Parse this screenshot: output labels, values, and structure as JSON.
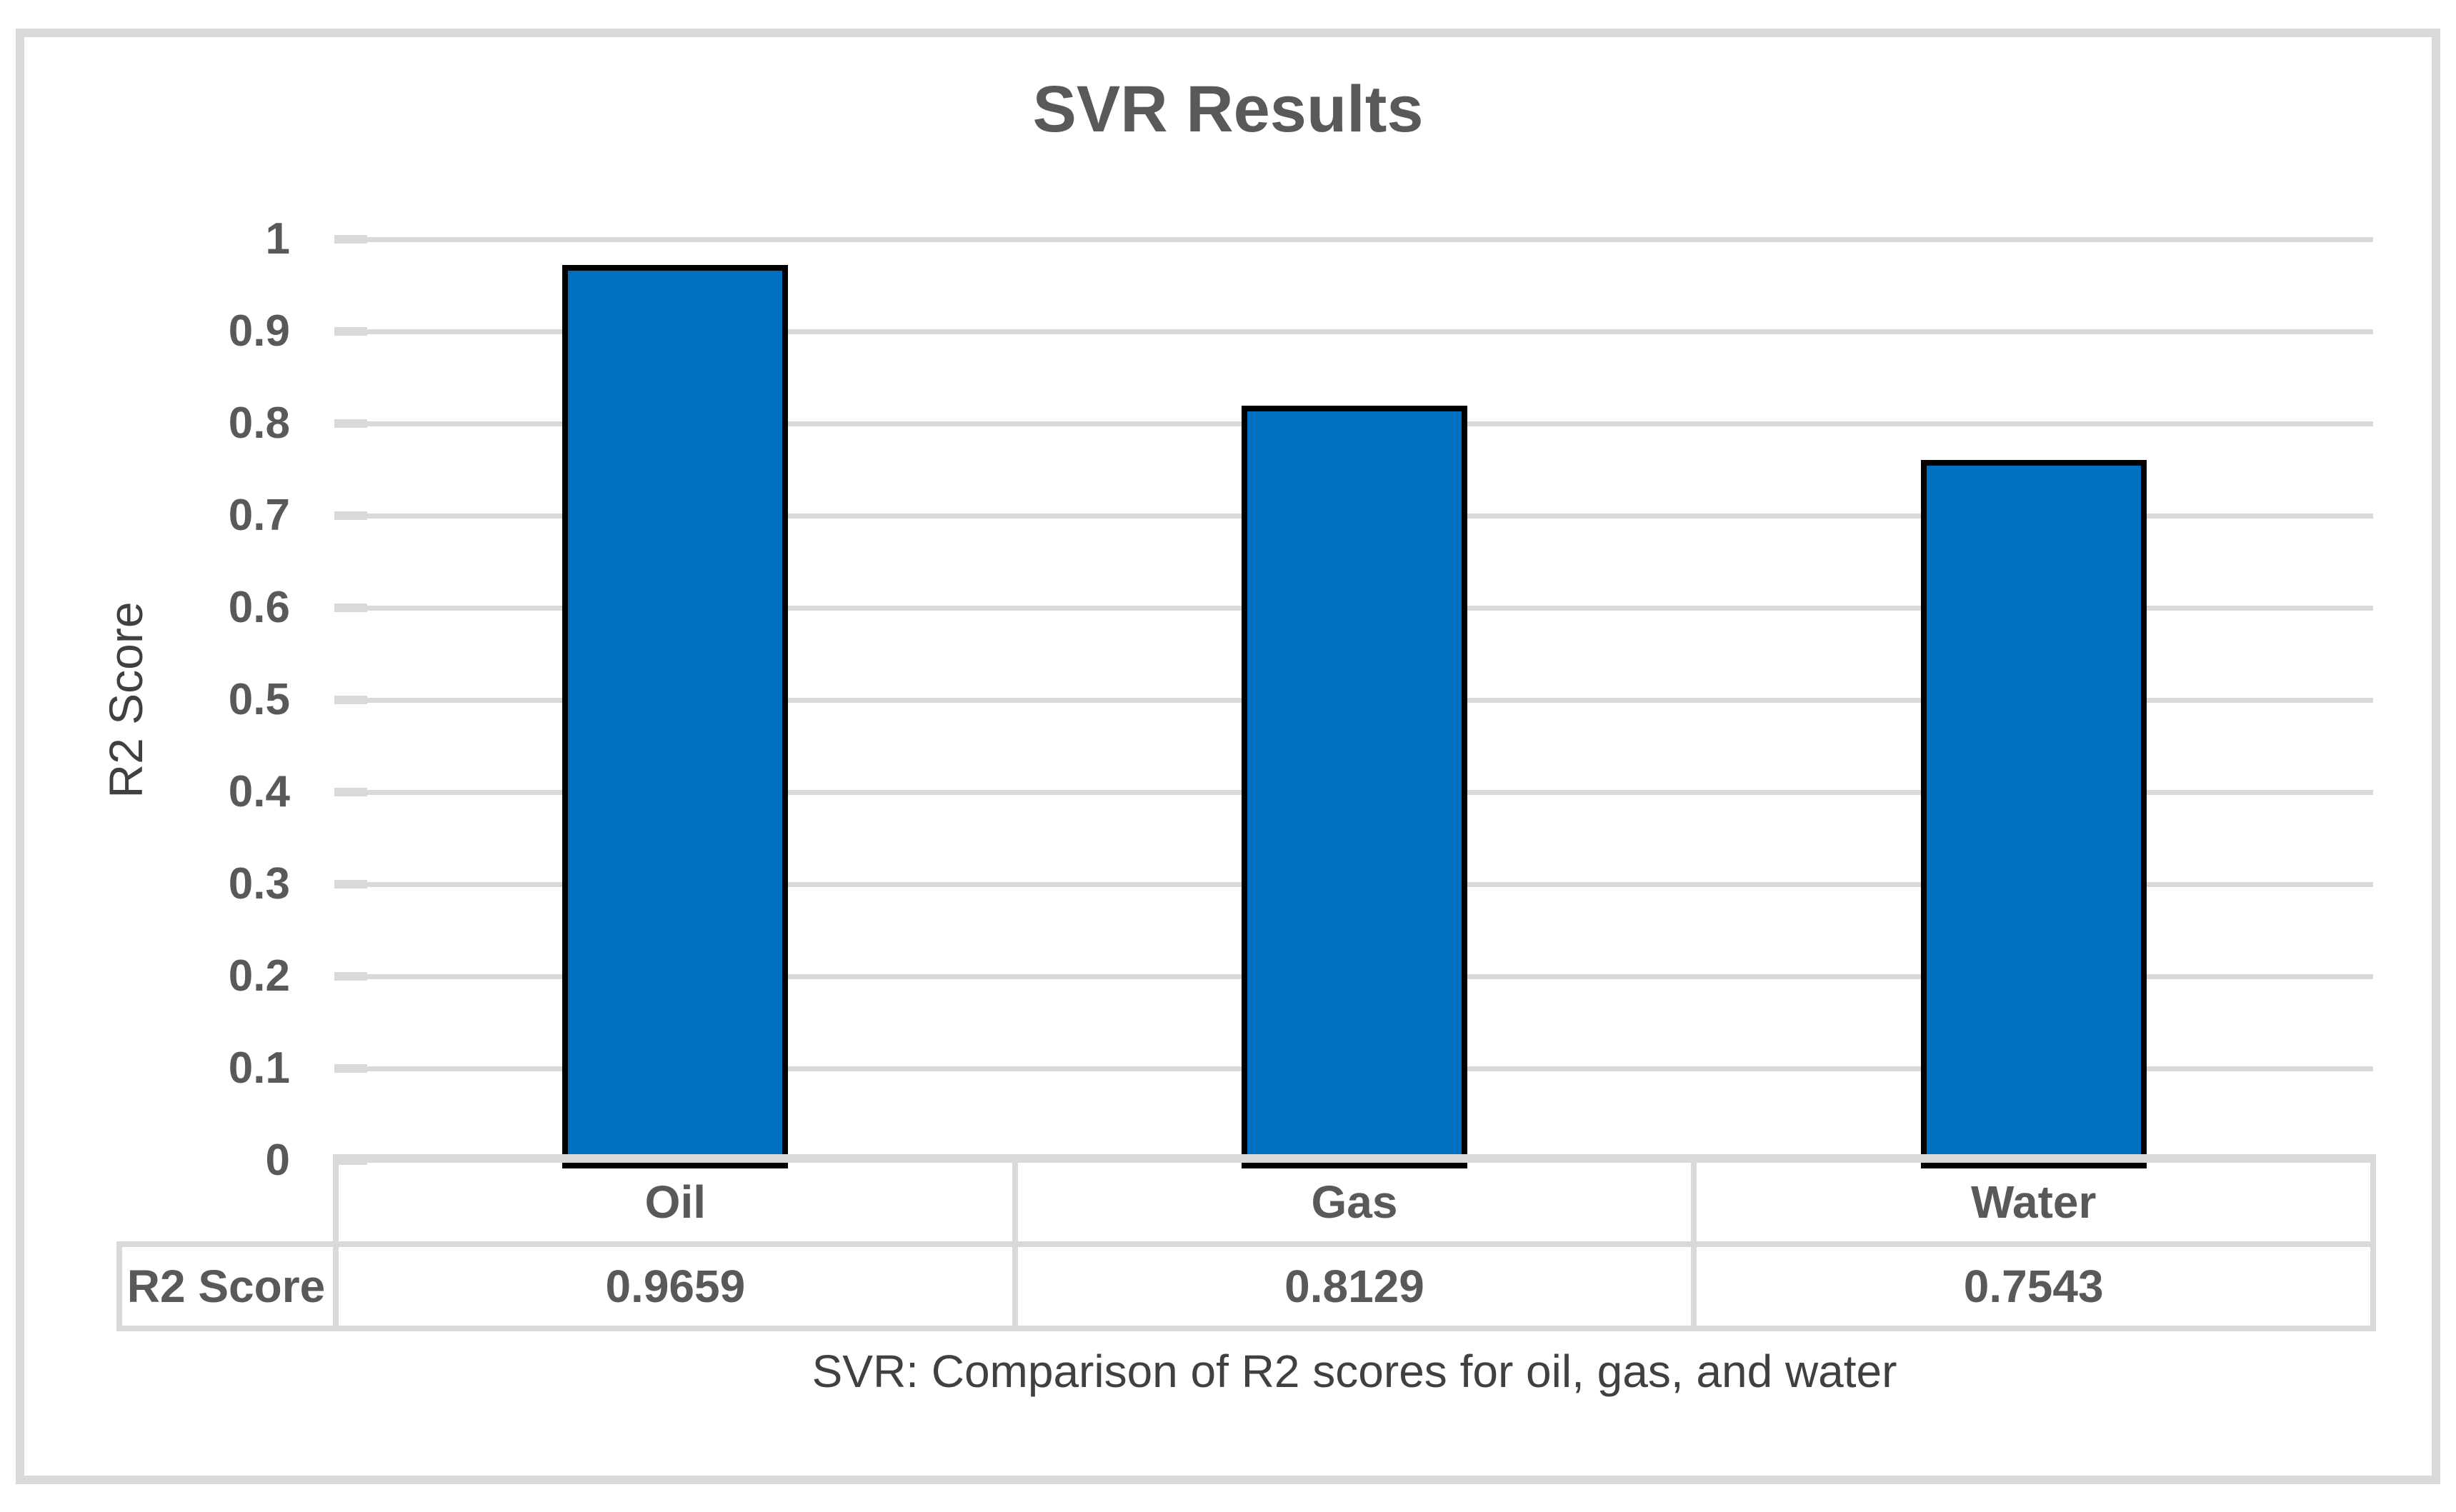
{
  "chart": {
    "title": "SVR Results",
    "y_axis_title": "R2 Score",
    "caption": "SVR: Comparison of R2 scores for oil, gas, and water",
    "table_row_header": "R2 Score"
  },
  "chart_data": {
    "type": "bar",
    "title": "SVR Results",
    "categories": [
      "Oil",
      "Gas",
      "Water"
    ],
    "series": [
      {
        "name": "R2 Score",
        "values": [
          0.9659,
          0.8129,
          0.7543
        ]
      }
    ],
    "value_labels": [
      "0.9659",
      "0.8129",
      "0.7543"
    ],
    "ylabel": "R2 Score",
    "xlabel": "SVR: Comparison of R2 scores for oil, gas, and water",
    "ylim": [
      0,
      1
    ],
    "ytick_step": 0.1,
    "ytick_labels": [
      "0",
      "0.1",
      "0.2",
      "0.3",
      "0.4",
      "0.5",
      "0.6",
      "0.7",
      "0.8",
      "0.9",
      "1"
    ],
    "grid": true,
    "legend_position": "none",
    "data_table_shown": true,
    "colors": {
      "bar_fill": "#0070c0",
      "bar_border": "#000000",
      "gridline": "#d9d9d9",
      "frame_border": "#d9d9d9",
      "tick_text": "#595959",
      "table_text": "#595959",
      "title_text": "#595959",
      "axis_title_text": "#404040",
      "caption_text": "#404040",
      "background": "#ffffff"
    }
  }
}
